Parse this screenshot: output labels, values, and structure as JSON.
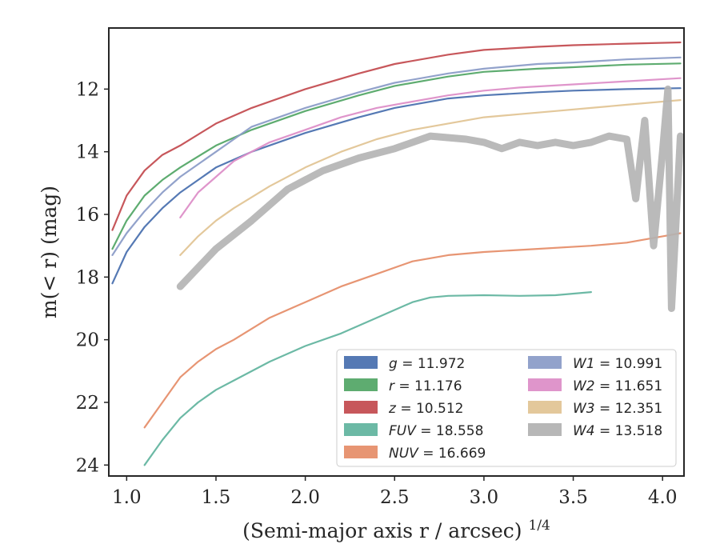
{
  "chart_data": {
    "type": "line",
    "xlabel": "(Semi-major axis r / arcsec)",
    "xlabel_exponent": "1/4",
    "ylabel": "m(< r) (mag)",
    "xlim": [
      0.9,
      4.12
    ],
    "ylim": [
      24.35,
      10.05
    ],
    "y_inverted": true,
    "x_ticks": [
      1.0,
      1.5,
      2.0,
      2.5,
      3.0,
      3.5,
      4.0
    ],
    "x_tick_labels": [
      "1.0",
      "1.5",
      "2.0",
      "2.5",
      "3.0",
      "3.5",
      "4.0"
    ],
    "y_ticks": [
      12,
      14,
      16,
      18,
      20,
      22,
      24
    ],
    "y_tick_labels": [
      "12",
      "14",
      "16",
      "18",
      "20",
      "22",
      "24"
    ],
    "grid": false,
    "legend_position": "lower-right",
    "legend_columns": 2,
    "series": [
      {
        "name": "g",
        "value": "11.972",
        "color": "#4c72b0",
        "x": [
          0.92,
          1.0,
          1.1,
          1.2,
          1.3,
          1.5,
          1.7,
          2.0,
          2.3,
          2.5,
          2.8,
          3.0,
          3.3,
          3.5,
          3.8,
          4.1
        ],
        "y": [
          18.2,
          17.2,
          16.4,
          15.8,
          15.3,
          14.5,
          14.0,
          13.4,
          12.9,
          12.6,
          12.3,
          12.2,
          12.1,
          12.05,
          12.0,
          11.97
        ]
      },
      {
        "name": "r",
        "value": "11.176",
        "color": "#55a868",
        "x": [
          0.92,
          1.0,
          1.1,
          1.2,
          1.3,
          1.5,
          1.7,
          2.0,
          2.3,
          2.5,
          2.8,
          3.0,
          3.3,
          3.5,
          3.8,
          4.1
        ],
        "y": [
          17.1,
          16.2,
          15.4,
          14.9,
          14.5,
          13.8,
          13.3,
          12.7,
          12.2,
          11.9,
          11.6,
          11.45,
          11.35,
          11.3,
          11.22,
          11.18
        ]
      },
      {
        "name": "z",
        "value": "10.512",
        "color": "#c44e52",
        "x": [
          0.92,
          1.0,
          1.1,
          1.2,
          1.3,
          1.5,
          1.7,
          2.0,
          2.3,
          2.5,
          2.8,
          3.0,
          3.3,
          3.5,
          3.8,
          4.1
        ],
        "y": [
          16.5,
          15.4,
          14.6,
          14.1,
          13.8,
          13.1,
          12.6,
          12.0,
          11.5,
          11.2,
          10.9,
          10.75,
          10.65,
          10.6,
          10.55,
          10.51
        ]
      },
      {
        "name": "FUV",
        "value": "18.558",
        "color": "#64b5a0",
        "x": [
          1.1,
          1.2,
          1.3,
          1.4,
          1.5,
          1.6,
          1.8,
          2.0,
          2.2,
          2.4,
          2.6,
          2.7,
          2.8,
          3.0,
          3.2,
          3.4,
          3.6
        ],
        "y": [
          24.0,
          23.2,
          22.5,
          22.0,
          21.6,
          21.3,
          20.7,
          20.2,
          19.8,
          19.3,
          18.8,
          18.65,
          18.6,
          18.58,
          18.6,
          18.58,
          18.48
        ]
      },
      {
        "name": "NUV",
        "value": "16.669",
        "color": "#e68f6c",
        "x": [
          1.1,
          1.2,
          1.3,
          1.4,
          1.5,
          1.6,
          1.8,
          2.0,
          2.2,
          2.4,
          2.6,
          2.8,
          3.0,
          3.3,
          3.6,
          3.8,
          4.0,
          4.1
        ],
        "y": [
          22.8,
          22.0,
          21.2,
          20.7,
          20.3,
          20.0,
          19.3,
          18.8,
          18.3,
          17.9,
          17.5,
          17.3,
          17.2,
          17.1,
          17.0,
          16.9,
          16.7,
          16.6
        ]
      },
      {
        "name": "W1",
        "value": "10.991",
        "color": "#8c9dc8",
        "x": [
          0.92,
          1.0,
          1.1,
          1.2,
          1.3,
          1.5,
          1.7,
          2.0,
          2.3,
          2.5,
          2.8,
          3.0,
          3.3,
          3.5,
          3.8,
          4.1
        ],
        "y": [
          17.3,
          16.6,
          15.9,
          15.3,
          14.8,
          14.0,
          13.2,
          12.6,
          12.1,
          11.8,
          11.5,
          11.35,
          11.2,
          11.15,
          11.05,
          10.99
        ]
      },
      {
        "name": "W2",
        "value": "11.651",
        "color": "#dd8fc8",
        "x": [
          1.3,
          1.4,
          1.5,
          1.6,
          1.8,
          2.0,
          2.2,
          2.4,
          2.6,
          2.8,
          3.0,
          3.2,
          3.5,
          3.8,
          4.1
        ],
        "y": [
          16.1,
          15.3,
          14.8,
          14.3,
          13.7,
          13.3,
          12.9,
          12.6,
          12.4,
          12.2,
          12.05,
          11.95,
          11.85,
          11.75,
          11.65
        ]
      },
      {
        "name": "W3",
        "value": "12.351",
        "color": "#e1c596",
        "x": [
          1.3,
          1.4,
          1.5,
          1.6,
          1.8,
          2.0,
          2.2,
          2.4,
          2.6,
          2.8,
          3.0,
          3.2,
          3.4,
          3.6,
          3.8,
          4.0,
          4.1
        ],
        "y": [
          17.3,
          16.7,
          16.2,
          15.8,
          15.1,
          14.5,
          14.0,
          13.6,
          13.3,
          13.1,
          12.9,
          12.8,
          12.7,
          12.6,
          12.5,
          12.4,
          12.35
        ]
      },
      {
        "name": "W4",
        "value": "13.518",
        "color": "#b3b3b3",
        "x": [
          1.3,
          1.4,
          1.5,
          1.7,
          1.9,
          2.1,
          2.3,
          2.5,
          2.7,
          2.9,
          3.0,
          3.1,
          3.2,
          3.3,
          3.4,
          3.5,
          3.6,
          3.7,
          3.8,
          3.85,
          3.9,
          3.95,
          4.0,
          4.03,
          4.05,
          4.1
        ],
        "y": [
          18.3,
          17.7,
          17.1,
          16.2,
          15.2,
          14.6,
          14.2,
          13.9,
          13.5,
          13.6,
          13.7,
          13.9,
          13.7,
          13.8,
          13.7,
          13.8,
          13.7,
          13.5,
          13.6,
          15.5,
          13.0,
          17.0,
          14.0,
          12.0,
          19.0,
          13.5
        ]
      }
    ]
  }
}
